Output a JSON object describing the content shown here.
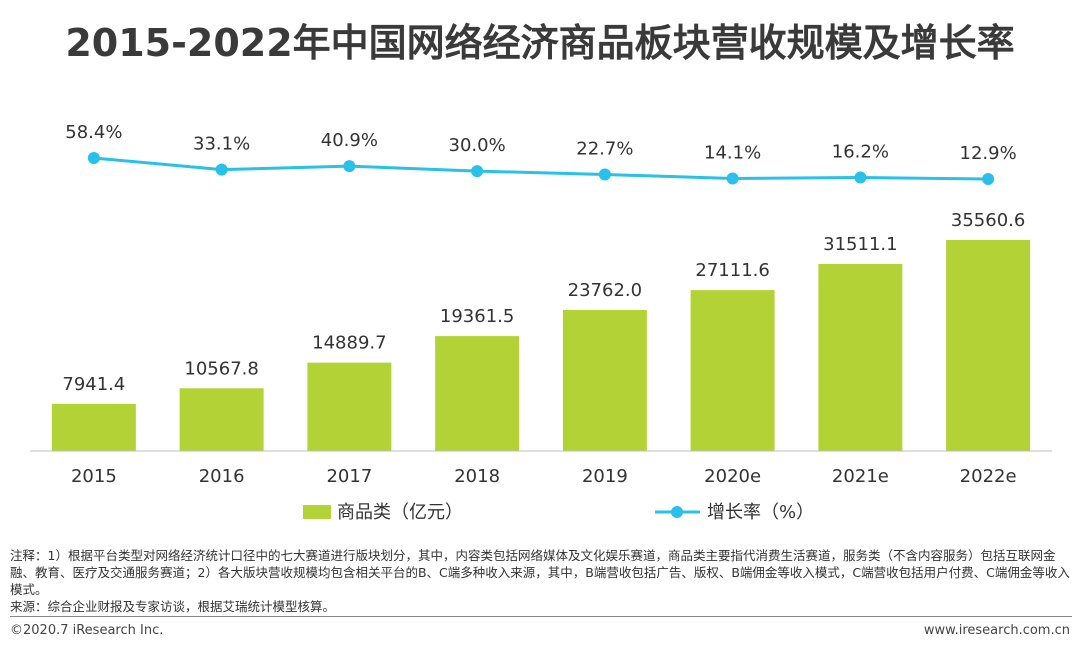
{
  "title": "2015-2022年中国网络经济商品板块营收规模及增长率",
  "chart_data": {
    "type": "bar+line",
    "categories": [
      "2015",
      "2016",
      "2017",
      "2018",
      "2019",
      "2020e",
      "2021e",
      "2022e"
    ],
    "series": [
      {
        "name": "商品类（亿元）",
        "type": "bar",
        "values": [
          7941.4,
          10567.8,
          14889.7,
          19361.5,
          23762.0,
          27111.6,
          31511.1,
          35560.6
        ],
        "labels": [
          "7941.4",
          "10567.8",
          "14889.7",
          "19361.5",
          "23762.0",
          "27111.6",
          "31511.1",
          "35560.6"
        ],
        "color": "#b2d235"
      },
      {
        "name": "增长率（%）",
        "type": "line",
        "values": [
          58.4,
          33.1,
          40.9,
          30.0,
          22.7,
          14.1,
          16.2,
          12.9
        ],
        "labels": [
          "58.4%",
          "33.1%",
          "40.9%",
          "30.0%",
          "22.7%",
          "14.1%",
          "16.2%",
          "12.9%"
        ],
        "color": "#29c0ea"
      }
    ],
    "legend_position": "bottom",
    "grid": false
  },
  "note": {
    "line1": "注释：1）根据平台类型对网络经济统计口径中的七大赛道进行版块划分，其中，内容类包括网络媒体及文化娱乐赛道，商品类主要指代消费生活赛道，服务类（不含内容服务）包括互联网金融、教育、医疗及交通服务赛道；2）各大版块营收规模均包含相关平台的B、C端多种收入来源，其中，B端营收包括广告、版权、B端佣金等收入模式，C端营收包括用户付费、C端佣金等收入模式。",
    "line2": "来源：综合企业财报及专家访谈，根据艾瑞统计模型核算。"
  },
  "footer": {
    "copyright": "©2020.7 iResearch Inc.",
    "website": "www.iresearch.com.cn"
  }
}
